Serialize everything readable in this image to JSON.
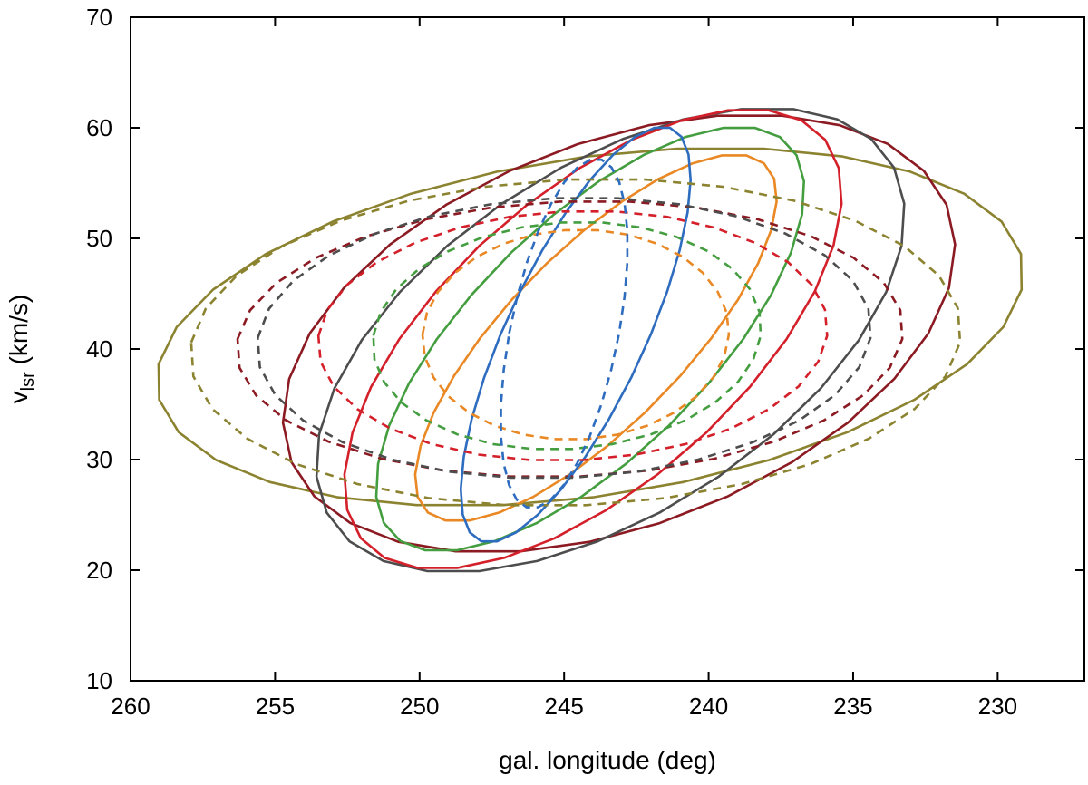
{
  "chart_data": {
    "type": "line",
    "title": "",
    "xlabel": "gal. longitude (deg)",
    "ylabel_main": "v",
    "ylabel_sub": "lsr",
    "ylabel_unit": " (km/s)",
    "xlim": [
      260,
      227
    ],
    "ylim": [
      10,
      70
    ],
    "x_reversed": true,
    "xticks": [
      260,
      255,
      250,
      245,
      240,
      235,
      230
    ],
    "yticks": [
      10,
      20,
      30,
      40,
      50,
      60,
      70
    ],
    "grid": false,
    "legend": "none",
    "series": [
      {
        "style": "solid",
        "color": "#8b8330",
        "cx": 244.1,
        "cy": 42.0,
        "rx": 14.3,
        "ry": 16.2,
        "tilt": -2.8
      },
      {
        "style": "solid",
        "color": "#8b1a22",
        "cx": 243.1,
        "cy": 41.4,
        "rx": 10.7,
        "ry": 19.8,
        "tilt": -2.3
      },
      {
        "style": "solid",
        "color": "#4d4d4d",
        "cx": 243.4,
        "cy": 40.8,
        "rx": 8.6,
        "ry": 21.0,
        "tilt": -2.6
      },
      {
        "style": "solid",
        "color": "#d4202a",
        "cx": 244.0,
        "cy": 40.9,
        "rx": 6.7,
        "ry": 20.8,
        "tilt": -2.6
      },
      {
        "style": "solid",
        "color": "#449e40",
        "cx": 244.1,
        "cy": 40.9,
        "rx": 5.3,
        "ry": 19.2,
        "tilt": -2.7
      },
      {
        "style": "solid",
        "color": "#e98824",
        "cx": 243.9,
        "cy": 41.0,
        "rx": 4.0,
        "ry": 16.6,
        "tilt": -2.9
      },
      {
        "style": "solid",
        "color": "#2e6cbf",
        "cx": 244.6,
        "cy": 41.3,
        "rx": 2.6,
        "ry": 18.8,
        "tilt": -1.6
      },
      {
        "style": "dashed",
        "color": "#8b8330",
        "cx": 244.6,
        "cy": 40.6,
        "rx": 13.3,
        "ry": 14.8,
        "tilt": -0.7
      },
      {
        "style": "dashed",
        "color": "#8b1a22",
        "cx": 244.8,
        "cy": 40.9,
        "rx": 11.5,
        "ry": 12.5,
        "tilt": -0.7
      },
      {
        "style": "dashed",
        "color": "#4d4d4d",
        "cx": 245.0,
        "cy": 41.0,
        "rx": 10.6,
        "ry": 12.7,
        "tilt": -0.6
      },
      {
        "style": "dashed",
        "color": "#d4202a",
        "cx": 244.7,
        "cy": 41.2,
        "rx": 8.8,
        "ry": 11.3,
        "tilt": -0.5
      },
      {
        "style": "dashed",
        "color": "#449e40",
        "cx": 244.9,
        "cy": 41.2,
        "rx": 6.7,
        "ry": 10.3,
        "tilt": -0.5
      },
      {
        "style": "dashed",
        "color": "#e98824",
        "cx": 244.6,
        "cy": 41.3,
        "rx": 5.3,
        "ry": 9.5,
        "tilt": -0.2
      },
      {
        "style": "dashed",
        "color": "#2e6cbf",
        "cx": 245.0,
        "cy": 41.4,
        "rx": 1.9,
        "ry": 15.8,
        "tilt": -0.7
      }
    ]
  }
}
